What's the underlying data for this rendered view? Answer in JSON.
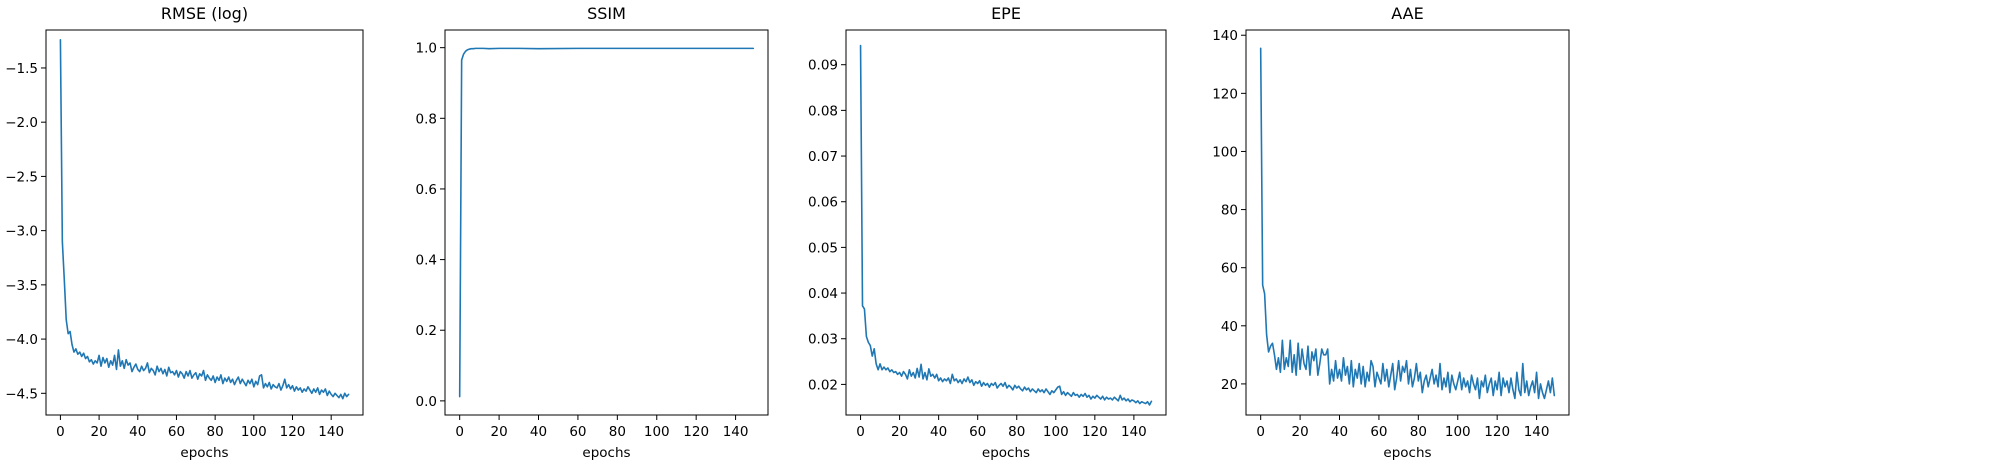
{
  "chart_data": [
    {
      "type": "line",
      "title": "RMSE (log)",
      "xlabel": "epochs",
      "ylabel": "",
      "xlim": [
        -7.45,
        156.45
      ],
      "ylim": [
        -4.7,
        -1.15
      ],
      "xticks": [
        0,
        20,
        40,
        60,
        80,
        100,
        120,
        140
      ],
      "yticks": [
        -4.5,
        -4.0,
        -3.5,
        -3.0,
        -2.5,
        -2.0,
        -1.5
      ],
      "ytick_labels": [
        "−4.5",
        "−4.0",
        "−3.5",
        "−3.0",
        "−2.5",
        "−2.0",
        "−1.5"
      ],
      "grid": false,
      "color": "#1f77b4",
      "x": [
        0,
        1,
        2,
        3,
        4,
        5,
        6,
        7,
        8,
        9,
        10,
        11,
        12,
        13,
        14,
        15,
        16,
        17,
        18,
        19,
        20,
        21,
        22,
        23,
        24,
        25,
        26,
        27,
        28,
        29,
        30,
        31,
        32,
        33,
        34,
        35,
        36,
        37,
        38,
        39,
        40,
        41,
        42,
        43,
        44,
        45,
        46,
        47,
        48,
        49,
        50,
        51,
        52,
        53,
        54,
        55,
        56,
        57,
        58,
        59,
        60,
        61,
        62,
        63,
        64,
        65,
        66,
        67,
        68,
        69,
        70,
        71,
        72,
        73,
        74,
        75,
        76,
        77,
        78,
        79,
        80,
        81,
        82,
        83,
        84,
        85,
        86,
        87,
        88,
        89,
        90,
        91,
        92,
        93,
        94,
        95,
        96,
        97,
        98,
        99,
        100,
        101,
        102,
        103,
        104,
        105,
        106,
        107,
        108,
        109,
        110,
        111,
        112,
        113,
        114,
        115,
        116,
        117,
        118,
        119,
        120,
        121,
        122,
        123,
        124,
        125,
        126,
        127,
        128,
        129,
        130,
        131,
        132,
        133,
        134,
        135,
        136,
        137,
        138,
        139,
        140,
        141,
        142,
        143,
        144,
        145,
        146,
        147,
        148,
        149
      ],
      "y": [
        -1.24,
        -3.1,
        -3.45,
        -3.82,
        -3.95,
        -3.93,
        -4.05,
        -4.12,
        -4.09,
        -4.14,
        -4.12,
        -4.16,
        -4.13,
        -4.18,
        -4.16,
        -4.21,
        -4.19,
        -4.23,
        -4.2,
        -4.22,
        -4.15,
        -4.25,
        -4.17,
        -4.22,
        -4.18,
        -4.26,
        -4.2,
        -4.24,
        -4.15,
        -4.28,
        -4.1,
        -4.25,
        -4.2,
        -4.27,
        -4.19,
        -4.24,
        -4.22,
        -4.3,
        -4.26,
        -4.23,
        -4.28,
        -4.3,
        -4.25,
        -4.29,
        -4.27,
        -4.22,
        -4.31,
        -4.27,
        -4.29,
        -4.33,
        -4.25,
        -4.3,
        -4.27,
        -4.32,
        -4.28,
        -4.34,
        -4.26,
        -4.31,
        -4.3,
        -4.33,
        -4.29,
        -4.35,
        -4.3,
        -4.32,
        -4.36,
        -4.3,
        -4.34,
        -4.29,
        -4.36,
        -4.33,
        -4.31,
        -4.37,
        -4.32,
        -4.34,
        -4.29,
        -4.38,
        -4.33,
        -4.36,
        -4.38,
        -4.34,
        -4.4,
        -4.35,
        -4.38,
        -4.33,
        -4.41,
        -4.36,
        -4.39,
        -4.35,
        -4.4,
        -4.37,
        -4.42,
        -4.38,
        -4.35,
        -4.41,
        -4.37,
        -4.4,
        -4.43,
        -4.38,
        -4.41,
        -4.37,
        -4.44,
        -4.39,
        -4.42,
        -4.34,
        -4.33,
        -4.45,
        -4.41,
        -4.44,
        -4.4,
        -4.46,
        -4.42,
        -4.44,
        -4.45,
        -4.41,
        -4.47,
        -4.43,
        -4.37,
        -4.45,
        -4.42,
        -4.46,
        -4.43,
        -4.48,
        -4.44,
        -4.47,
        -4.45,
        -4.49,
        -4.46,
        -4.48,
        -4.44,
        -4.47,
        -4.5,
        -4.46,
        -4.49,
        -4.45,
        -4.51,
        -4.47,
        -4.49,
        -4.46,
        -4.52,
        -4.48,
        -4.51,
        -4.53,
        -4.5,
        -4.52,
        -4.54,
        -4.51,
        -4.55,
        -4.5,
        -4.53,
        -4.51
      ]
    },
    {
      "type": "line",
      "title": "SSIM",
      "xlabel": "epochs",
      "ylabel": "",
      "xlim": [
        -7.45,
        156.45
      ],
      "ylim": [
        -0.04,
        1.05
      ],
      "xticks": [
        0,
        20,
        40,
        60,
        80,
        100,
        120,
        140
      ],
      "yticks": [
        0.0,
        0.2,
        0.4,
        0.6,
        0.8,
        1.0
      ],
      "ytick_labels": [
        "0.0",
        "0.2",
        "0.4",
        "0.6",
        "0.8",
        "1.0"
      ],
      "grid": false,
      "color": "#1f77b4",
      "x": [
        0,
        1,
        2,
        3,
        4,
        5,
        6,
        7,
        8,
        9,
        10,
        12,
        15,
        20,
        30,
        40,
        60,
        80,
        100,
        120,
        140,
        149
      ],
      "y": [
        0.012,
        0.965,
        0.982,
        0.99,
        0.994,
        0.996,
        0.997,
        0.997,
        0.998,
        0.998,
        0.998,
        0.998,
        0.997,
        0.998,
        0.998,
        0.997,
        0.998,
        0.998,
        0.998,
        0.998,
        0.998,
        0.998
      ]
    },
    {
      "type": "line",
      "title": "EPE",
      "xlabel": "epochs",
      "ylabel": "",
      "xlim": [
        -7.45,
        156.45
      ],
      "ylim": [
        0.0133,
        0.0976
      ],
      "xticks": [
        0,
        20,
        40,
        60,
        80,
        100,
        120,
        140
      ],
      "yticks": [
        0.02,
        0.03,
        0.04,
        0.05,
        0.06,
        0.07,
        0.08,
        0.09
      ],
      "ytick_labels": [
        "0.02",
        "0.03",
        "0.04",
        "0.05",
        "0.06",
        "0.07",
        "0.08",
        "0.09"
      ],
      "grid": false,
      "color": "#1f77b4",
      "x": [
        0,
        1,
        2,
        3,
        4,
        5,
        6,
        7,
        8,
        9,
        10,
        11,
        12,
        13,
        14,
        15,
        16,
        17,
        18,
        19,
        20,
        21,
        22,
        23,
        24,
        25,
        26,
        27,
        28,
        29,
        30,
        31,
        32,
        33,
        34,
        35,
        36,
        37,
        38,
        39,
        40,
        41,
        42,
        43,
        44,
        45,
        46,
        47,
        48,
        49,
        50,
        51,
        52,
        53,
        54,
        55,
        56,
        57,
        58,
        59,
        60,
        61,
        62,
        63,
        64,
        65,
        66,
        67,
        68,
        69,
        70,
        71,
        72,
        73,
        74,
        75,
        76,
        77,
        78,
        79,
        80,
        81,
        82,
        83,
        84,
        85,
        86,
        87,
        88,
        89,
        90,
        91,
        92,
        93,
        94,
        95,
        96,
        97,
        98,
        99,
        100,
        101,
        102,
        103,
        104,
        105,
        106,
        107,
        108,
        109,
        110,
        111,
        112,
        113,
        114,
        115,
        116,
        117,
        118,
        119,
        120,
        121,
        122,
        123,
        124,
        125,
        126,
        127,
        128,
        129,
        130,
        131,
        132,
        133,
        134,
        135,
        136,
        137,
        138,
        139,
        140,
        141,
        142,
        143,
        144,
        145,
        146,
        147,
        148,
        149
      ],
      "y": [
        0.0942,
        0.0372,
        0.0365,
        0.0305,
        0.0292,
        0.0285,
        0.0262,
        0.0278,
        0.0245,
        0.0232,
        0.0245,
        0.0232,
        0.0238,
        0.0232,
        0.0236,
        0.0228,
        0.0232,
        0.0226,
        0.0228,
        0.0222,
        0.0226,
        0.0218,
        0.0228,
        0.0222,
        0.0212,
        0.0232,
        0.0218,
        0.0226,
        0.0214,
        0.0235,
        0.0216,
        0.0244,
        0.0212,
        0.0226,
        0.021,
        0.0234,
        0.0218,
        0.0222,
        0.0214,
        0.0222,
        0.0208,
        0.0214,
        0.0206,
        0.0212,
        0.0208,
        0.0214,
        0.0202,
        0.0222,
        0.0208,
        0.0212,
        0.0204,
        0.021,
        0.0202,
        0.0212,
        0.0206,
        0.0216,
        0.0204,
        0.021,
        0.0198,
        0.0206,
        0.0202,
        0.0208,
        0.0196,
        0.0204,
        0.0198,
        0.0202,
        0.0194,
        0.0202,
        0.0198,
        0.0204,
        0.0192,
        0.0198,
        0.0202,
        0.0196,
        0.0204,
        0.0192,
        0.0198,
        0.0194,
        0.0188,
        0.0198,
        0.0192,
        0.0196,
        0.019,
        0.0186,
        0.0194,
        0.0188,
        0.0192,
        0.0184,
        0.019,
        0.0186,
        0.0182,
        0.019,
        0.0184,
        0.0188,
        0.0182,
        0.019,
        0.0184,
        0.0178,
        0.0186,
        0.0182,
        0.0188,
        0.0194,
        0.0196,
        0.0178,
        0.0184,
        0.0176,
        0.0182,
        0.0178,
        0.0174,
        0.0182,
        0.0176,
        0.0178,
        0.0172,
        0.0178,
        0.0174,
        0.018,
        0.0172,
        0.0176,
        0.0168,
        0.0174,
        0.017,
        0.0176,
        0.0172,
        0.0168,
        0.0174,
        0.0166,
        0.0172,
        0.0168,
        0.017,
        0.0166,
        0.0172,
        0.0168,
        0.0164,
        0.0176,
        0.0166,
        0.017,
        0.0164,
        0.0168,
        0.0162,
        0.0166,
        0.0164,
        0.016,
        0.0164,
        0.0158,
        0.0162,
        0.016,
        0.0158,
        0.0162,
        0.0155,
        0.0163
      ]
    },
    {
      "type": "line",
      "title": "AAE",
      "xlabel": "epochs",
      "ylabel": "",
      "xlim": [
        -7.45,
        156.45
      ],
      "ylim": [
        9.3,
        141.8
      ],
      "xticks": [
        0,
        20,
        40,
        60,
        80,
        100,
        120,
        140
      ],
      "yticks": [
        20,
        40,
        60,
        80,
        100,
        120,
        140
      ],
      "ytick_labels": [
        "20",
        "40",
        "60",
        "80",
        "100",
        "120",
        "140"
      ],
      "grid": false,
      "color": "#1f77b4",
      "x": [
        0,
        1,
        2,
        3,
        4,
        5,
        6,
        7,
        8,
        9,
        10,
        11,
        12,
        13,
        14,
        15,
        16,
        17,
        18,
        19,
        20,
        21,
        22,
        23,
        24,
        25,
        26,
        27,
        28,
        29,
        30,
        31,
        32,
        33,
        34,
        35,
        36,
        37,
        38,
        39,
        40,
        41,
        42,
        43,
        44,
        45,
        46,
        47,
        48,
        49,
        50,
        51,
        52,
        53,
        54,
        55,
        56,
        57,
        58,
        59,
        60,
        61,
        62,
        63,
        64,
        65,
        66,
        67,
        68,
        69,
        70,
        71,
        72,
        73,
        74,
        75,
        76,
        77,
        78,
        79,
        80,
        81,
        82,
        83,
        84,
        85,
        86,
        87,
        88,
        89,
        90,
        91,
        92,
        93,
        94,
        95,
        96,
        97,
        98,
        99,
        100,
        101,
        102,
        103,
        104,
        105,
        106,
        107,
        108,
        109,
        110,
        111,
        112,
        113,
        114,
        115,
        116,
        117,
        118,
        119,
        120,
        121,
        122,
        123,
        124,
        125,
        126,
        127,
        128,
        129,
        130,
        131,
        132,
        133,
        134,
        135,
        136,
        137,
        138,
        139,
        140,
        141,
        142,
        143,
        144,
        145,
        146,
        147,
        148,
        149
      ],
      "y": [
        135.5,
        54,
        51,
        37,
        31,
        33,
        34,
        30,
        25,
        29,
        24,
        35,
        25,
        29,
        26,
        35,
        24,
        30,
        23,
        34,
        25,
        32,
        27,
        25,
        33,
        23,
        31,
        28,
        32,
        23,
        27,
        32,
        30,
        30,
        32,
        20,
        25,
        21,
        28,
        22,
        25,
        21,
        29,
        23,
        26,
        20,
        28,
        19,
        25,
        22,
        27,
        20,
        26,
        19,
        24,
        21,
        28,
        26,
        19,
        24,
        22,
        20,
        27,
        21,
        25,
        19,
        23,
        27,
        18,
        22,
        28,
        21,
        26,
        24,
        28,
        20,
        25,
        19,
        22,
        27,
        21,
        24,
        17,
        21,
        23,
        19,
        22,
        25,
        20,
        23,
        19,
        27,
        18,
        22,
        19,
        24,
        17,
        23,
        20,
        18,
        21,
        24,
        18,
        22,
        19,
        21,
        17,
        23,
        20,
        18,
        22,
        15,
        21,
        19,
        23,
        17,
        20,
        22,
        16,
        21,
        18,
        24,
        16,
        22,
        19,
        21,
        17,
        22,
        18,
        15,
        24,
        18,
        16,
        27,
        17,
        21,
        16,
        19,
        21,
        17,
        24,
        15,
        20,
        17,
        15,
        18,
        21,
        17,
        22,
        16
      ]
    }
  ]
}
